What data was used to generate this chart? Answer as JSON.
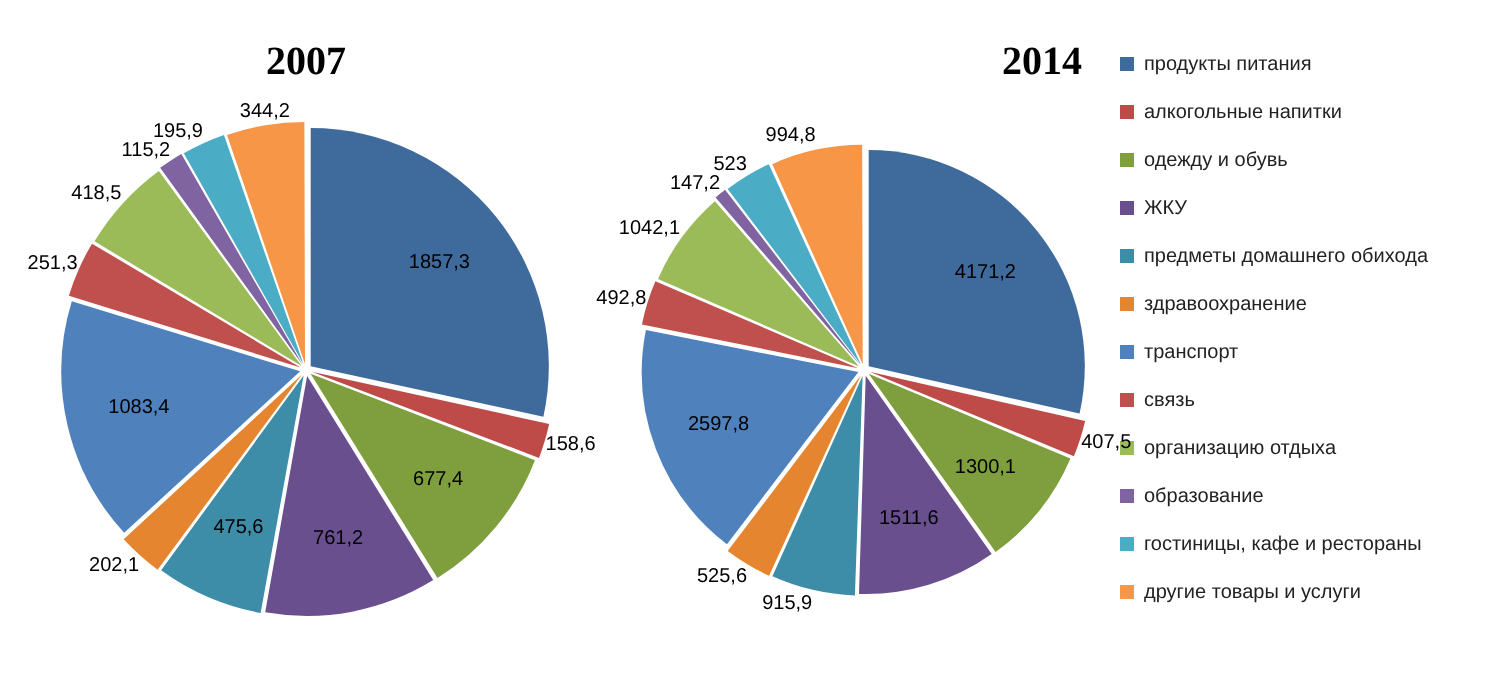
{
  "chart_data": [
    {
      "type": "pie",
      "title": "2007",
      "legend": false,
      "categories": [
        null,
        null,
        null,
        null,
        null,
        null,
        null,
        null,
        null,
        null,
        null,
        null
      ],
      "colors": [
        "#3f6a9c",
        "#be4b48",
        "#7f9f3e",
        "#6a4f8e",
        "#3d8da8",
        "#e6852f",
        "#4f81bd",
        "#c0504d",
        "#9bbb59",
        "#8064a2",
        "#4bacc6",
        "#f79646"
      ],
      "values": [
        1857.3,
        158.6,
        677.4,
        761.2,
        475.6,
        202.1,
        1083.4,
        251.3,
        418.5,
        115.2,
        195.9,
        344.2
      ],
      "value_labels": [
        "1857,3",
        "158,6",
        "677,4",
        "761,2",
        "475,6",
        "202,1",
        "1083,4",
        "251,3",
        "418,5",
        "115,2",
        "195,9",
        "344,2"
      ]
    },
    {
      "type": "pie",
      "title": "2014",
      "legend": "right",
      "categories": [
        "продукты питания",
        "алкогольные напитки",
        "одежду и обувь",
        "ЖКУ",
        "предметы домашнего обихода",
        "здравоохранение",
        "транспорт",
        "связь",
        "организацию отдыха",
        "образование",
        "гостиницы, кафе и рестораны",
        "другие товары и услуги"
      ],
      "colors": [
        "#3f6a9c",
        "#be4b48",
        "#7f9f3e",
        "#6a4f8e",
        "#3d8da8",
        "#e6852f",
        "#4f81bd",
        "#c0504d",
        "#9bbb59",
        "#8064a2",
        "#4bacc6",
        "#f79646"
      ],
      "values": [
        4171.2,
        407.5,
        1300.1,
        1511.6,
        915.9,
        525.6,
        2597.8,
        492.8,
        1042.1,
        147.2,
        523,
        994.8
      ],
      "value_labels": [
        "4171,2",
        "407,5",
        "1300,1",
        "1511,6",
        "915,9",
        "525,6",
        "2597,8",
        "492,8",
        "1042,1",
        "147,2",
        "523",
        "994,8"
      ]
    }
  ]
}
